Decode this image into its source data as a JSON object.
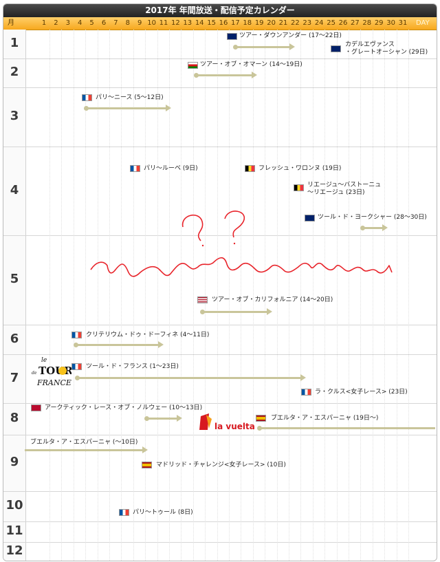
{
  "title": "2017年 年間放送・配信予定カレンダー",
  "header": {
    "month_label": "月",
    "day_label": "DAY",
    "days": [
      "1",
      "2",
      "3",
      "4",
      "5",
      "6",
      "7",
      "8",
      "9",
      "10",
      "11",
      "12",
      "13",
      "14",
      "15",
      "16",
      "17",
      "18",
      "19",
      "20",
      "21",
      "22",
      "23",
      "24",
      "25",
      "26",
      "27",
      "28",
      "29",
      "30",
      "31"
    ]
  },
  "months": [
    "1",
    "2",
    "3",
    "4",
    "5",
    "6",
    "7",
    "8",
    "9",
    "10",
    "11",
    "12"
  ],
  "events": {
    "tour_down_under": "ツアー・ダウンアンダー (17〜22日)",
    "cadel_line1": "カデルエヴァンス",
    "cadel_line2": "・グレートオーシャン (29日)",
    "tour_oman": "ツアー・オブ・オマーン (14〜19日)",
    "paris_nice": "パリ〜ニース (5〜12日)",
    "paris_roubaix": "パリ〜ルーベ (9日)",
    "fleche": "フレッシュ・ワロンヌ (19日)",
    "lbl_line1": "リエージュ〜バストーニュ",
    "lbl_line2": "〜リエージュ (23日)",
    "yorkshire": "ツール・ド・ヨークシャー (28〜30日)",
    "california": "ツアー・オブ・カリフォルニア (14〜20日)",
    "dauphine": "クリテリウム・ドゥ・ドーフィネ (4〜11日)",
    "tdf": "ツール・ド・フランス (1〜23日)",
    "la_course": "ラ・クルス<女子レース> (23日)",
    "arctic": "アークティック・レース・オブ・ノルウェー (10〜13日)",
    "vuelta": "ブエルタ・ア・エスパーニャ (19日〜)",
    "vuelta_cont": "ブエルタ・ア・エスパーニャ (〜10日)",
    "madrid": "マドリッド・チャレンジ<女子レース> (10日)",
    "paris_tours": "パリ〜トゥール (8日)"
  },
  "logos": {
    "tdf_logo": [
      "le",
      "TOUR",
      "de",
      "FRANCE"
    ],
    "vuelta_logo": "la vuelta"
  },
  "colors": {
    "header": "#f7a81e",
    "title_bar": "#2b2b2b",
    "arrow": "#c9c59a",
    "scribble": "#e8232a"
  }
}
